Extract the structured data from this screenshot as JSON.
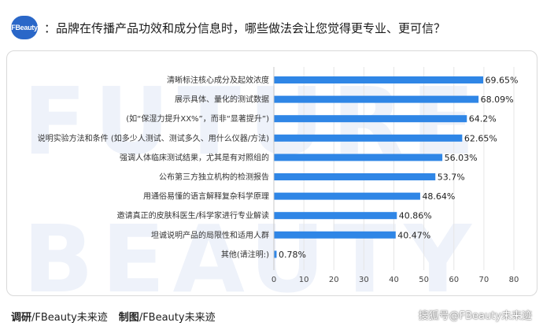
{
  "header": {
    "logo_text": "FBeauty",
    "title": "：品牌在传播产品功效和成分信息时，哪些做法会让您觉得更专业、更可信？"
  },
  "watermark": {
    "line1": "FUTURE",
    "line2": "BEAUTY"
  },
  "footer": {
    "research_label": "调研",
    "research_value": "/FBeauty未来迹",
    "made_label": "制图",
    "made_value": "/FBeauty未来迹"
  },
  "credit": "搜狐号@FBeauty未来迹",
  "colors": {
    "bar": "#2f86e6",
    "grid": "#e6e6e6",
    "logo": "#2a67c8"
  },
  "chart_data": {
    "type": "bar",
    "orientation": "horizontal",
    "title": "",
    "xlabel": "",
    "ylabel": "",
    "xlim": [
      0,
      80
    ],
    "xticks": [
      0,
      10,
      20,
      30,
      40,
      50,
      60,
      70,
      80
    ],
    "grid": true,
    "categories": [
      "清晰标注核心成分及起效浓度",
      "展示具体、量化的测试数据",
      "(如“保湿力提升XX%”，而非“显著提升”)",
      "说明实验方法和条件 (如多少人测试、测试多久、用什么仪器/方法)",
      "强调人体临床测试结果，尤其是有对照组的",
      "公布第三方独立机构的检测报告",
      "用通俗易懂的语言解释复杂科学原理",
      "邀请真正的皮肤科医生/科学家进行专业解读",
      "坦诚说明产品的局限性和适用人群",
      "其他(请注明:)"
    ],
    "values": [
      69.65,
      68.09,
      64.2,
      62.65,
      56.03,
      53.7,
      48.64,
      40.86,
      40.47,
      0.78
    ],
    "value_labels": [
      "69.65%",
      "68.09%",
      "64.2%",
      "62.65%",
      "56.03%",
      "53.7%",
      "48.64%",
      "40.86%",
      "40.47%",
      "0.78%"
    ]
  }
}
